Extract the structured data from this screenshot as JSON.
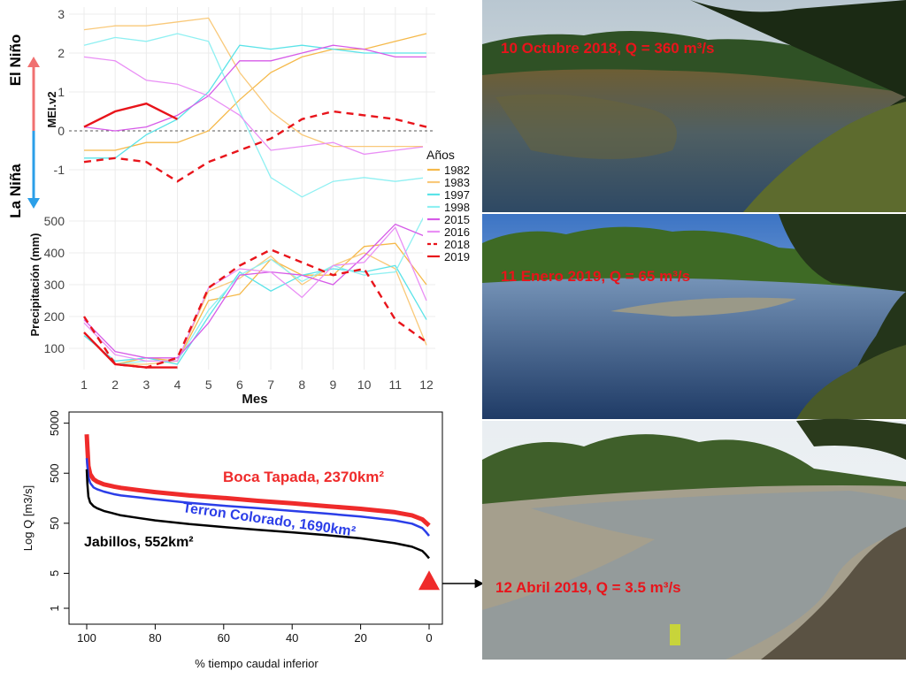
{
  "colors": {
    "y1982": "#f5b94a",
    "y1983": "#f9c97a",
    "y1997": "#5be3e8",
    "y1998": "#8ff0f2",
    "y2015": "#d65be8",
    "y2016": "#e98ff5",
    "y2018": "#e8141b",
    "y2019": "#e8141b",
    "boca": "#ef2b2b",
    "terron": "#2b3ee8",
    "jabillos": "#000000",
    "arrow_elnino": "#f07070",
    "arrow_lanina": "#2b9fe8",
    "caption": "#e8141b"
  },
  "labels": {
    "el_nino": "El Niño",
    "la_nina": "La Niña"
  },
  "photos": {
    "p1_caption": "10 Octubre 2018, Q = 360 m³/s",
    "p2_caption": "11 Enero 2019, Q = 65 m³/s",
    "p3_caption": "12 Abril 2019, Q = 3.5 m³/s"
  },
  "chart_data": [
    {
      "type": "line",
      "ylabel": "MEI.v2",
      "xlabel": "Mes",
      "ylim": [
        -2.2,
        3.2
      ],
      "yticks": [
        "3",
        "2",
        "1",
        "0",
        "-1"
      ],
      "legend_title": "Años",
      "legend_position": "right",
      "x": [
        1,
        2,
        3,
        4,
        5,
        6,
        7,
        8,
        9,
        10,
        11,
        12
      ],
      "series": [
        {
          "name": "1982",
          "style": "solid",
          "values": [
            -0.5,
            -0.5,
            -0.3,
            -0.3,
            0.0,
            0.8,
            1.5,
            1.9,
            2.1,
            2.1,
            2.3,
            2.5
          ]
        },
        {
          "name": "1983",
          "style": "solid",
          "values": [
            2.6,
            2.7,
            2.7,
            2.8,
            2.9,
            1.5,
            0.5,
            -0.1,
            -0.4,
            -0.4,
            -0.4,
            -0.4
          ]
        },
        {
          "name": "1997",
          "style": "solid",
          "values": [
            -0.7,
            -0.7,
            -0.1,
            0.3,
            1.0,
            2.2,
            2.1,
            2.2,
            2.1,
            2.0,
            2.0,
            2.0
          ]
        },
        {
          "name": "1998",
          "style": "solid",
          "values": [
            2.2,
            2.4,
            2.3,
            2.5,
            2.3,
            0.5,
            -1.2,
            -1.7,
            -1.3,
            -1.2,
            -1.3,
            -1.2
          ]
        },
        {
          "name": "2015",
          "style": "solid",
          "values": [
            0.1,
            0.0,
            0.1,
            0.4,
            0.9,
            1.8,
            1.8,
            2.0,
            2.2,
            2.1,
            1.9,
            1.9
          ]
        },
        {
          "name": "2016",
          "style": "solid",
          "values": [
            1.9,
            1.8,
            1.3,
            1.2,
            0.9,
            0.4,
            -0.5,
            -0.4,
            -0.3,
            -0.6,
            -0.5,
            -0.4
          ]
        },
        {
          "name": "2018",
          "style": "dashed",
          "values": [
            -0.8,
            -0.7,
            -0.8,
            -1.3,
            -0.8,
            -0.5,
            -0.2,
            0.3,
            0.5,
            0.4,
            0.3,
            0.1
          ]
        },
        {
          "name": "2019",
          "style": "solid",
          "values": [
            0.1,
            0.5,
            0.7,
            0.3,
            null,
            null,
            null,
            null,
            null,
            null,
            null,
            null
          ]
        }
      ]
    },
    {
      "type": "line",
      "ylabel": "Precipitación (mm)",
      "xlabel": "Mes",
      "ylim": [
        40,
        540
      ],
      "yticks": [
        "500",
        "400",
        "300",
        "200",
        "100"
      ],
      "xticks": [
        "1",
        "2",
        "3",
        "4",
        "5",
        "6",
        "7",
        "8",
        "9",
        "10",
        "11",
        "12"
      ],
      "x": [
        1,
        2,
        3,
        4,
        5,
        6,
        7,
        8,
        9,
        10,
        11,
        12
      ],
      "series": [
        {
          "name": "1982",
          "style": "solid",
          "values": [
            150,
            50,
            70,
            60,
            250,
            270,
            380,
            330,
            330,
            420,
            430,
            300
          ]
        },
        {
          "name": "1983",
          "style": "solid",
          "values": [
            150,
            50,
            50,
            60,
            280,
            320,
            390,
            300,
            360,
            400,
            350,
            110
          ]
        },
        {
          "name": "1997",
          "style": "solid",
          "values": [
            140,
            60,
            70,
            50,
            200,
            340,
            280,
            330,
            350,
            340,
            360,
            190
          ]
        },
        {
          "name": "1998",
          "style": "solid",
          "values": [
            150,
            50,
            60,
            60,
            220,
            330,
            380,
            310,
            360,
            330,
            340,
            530
          ]
        },
        {
          "name": "2015",
          "style": "solid",
          "values": [
            190,
            90,
            70,
            70,
            180,
            330,
            340,
            330,
            300,
            390,
            490,
            450
          ]
        },
        {
          "name": "2016",
          "style": "solid",
          "values": [
            180,
            80,
            60,
            60,
            290,
            350,
            340,
            260,
            360,
            370,
            480,
            250
          ]
        },
        {
          "name": "2018",
          "style": "dashed",
          "values": [
            200,
            50,
            40,
            70,
            290,
            360,
            410,
            370,
            330,
            350,
            190,
            120
          ]
        },
        {
          "name": "2019",
          "style": "solid",
          "values": [
            150,
            50,
            40,
            40,
            null,
            null,
            null,
            null,
            null,
            null,
            null,
            null
          ]
        }
      ]
    },
    {
      "type": "line",
      "ylabel": "Log Q [m3/s]",
      "xlabel": "% tiempo caudal inferior",
      "yscale": "log",
      "ylim": [
        1,
        5000
      ],
      "yticks": [
        "5000",
        "500",
        "50",
        "5",
        "1"
      ],
      "xlim": [
        100,
        0
      ],
      "xticks": [
        "100",
        "80",
        "60",
        "40",
        "20",
        "0"
      ],
      "series": [
        {
          "name": "Boca Tapada, 2370km²",
          "color": "boca",
          "x": [
            100,
            99.8,
            99.5,
            99,
            98,
            97,
            95,
            92,
            90,
            85,
            80,
            70,
            60,
            50,
            40,
            30,
            20,
            10,
            5,
            2,
            1,
            0
          ],
          "values": [
            3000,
            1600,
            700,
            480,
            380,
            340,
            300,
            270,
            255,
            230,
            210,
            180,
            160,
            140,
            125,
            110,
            97,
            83,
            72,
            60,
            52,
            45
          ]
        },
        {
          "name": "Terron Colorado, 1690km²",
          "color": "terron",
          "x": [
            100,
            99.8,
            99.5,
            99,
            98,
            97,
            95,
            92,
            90,
            85,
            80,
            70,
            60,
            50,
            40,
            30,
            20,
            10,
            5,
            2,
            1,
            0
          ],
          "values": [
            1000,
            700,
            420,
            320,
            260,
            240,
            215,
            190,
            180,
            165,
            150,
            128,
            112,
            100,
            88,
            78,
            68,
            57,
            49,
            40,
            34,
            28
          ]
        },
        {
          "name": "Jabillos, 552km²",
          "color": "jabillos",
          "x": [
            100,
            99.8,
            99.5,
            99,
            98,
            97,
            95,
            92,
            90,
            85,
            80,
            70,
            60,
            50,
            40,
            30,
            20,
            10,
            5,
            2,
            1,
            0
          ],
          "values": [
            600,
            300,
            170,
            130,
            110,
            100,
            88,
            78,
            72,
            64,
            57,
            48,
            42,
            37,
            33,
            29,
            25,
            20,
            17,
            14,
            12,
            10
          ]
        },
        {
          "name": "",
          "color": "boca",
          "marker": "triangle",
          "x": [
            0
          ],
          "values": [
            3.5
          ]
        }
      ]
    }
  ]
}
